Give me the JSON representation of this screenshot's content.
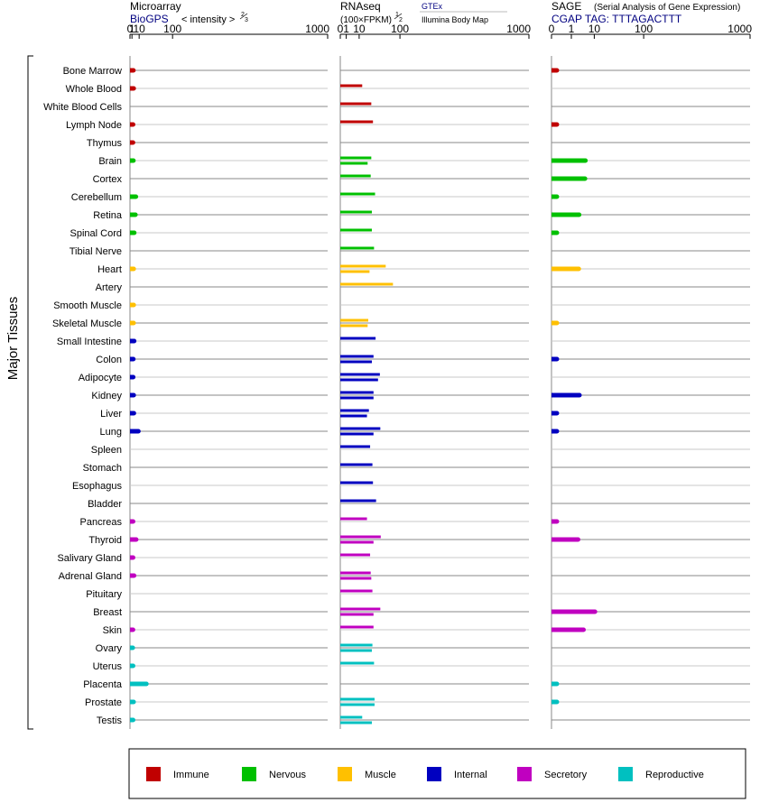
{
  "panels": [
    {
      "key": "microarray",
      "title": "Microarray",
      "subtitle": "BioGPS",
      "subtitle_color": "#000080",
      "scale_label": "< intensity >",
      "scale_exponent": "2/3",
      "exponent_num": "2",
      "exponent_den": "3"
    },
    {
      "key": "rnaseq",
      "title": "RNAseq",
      "scale_label": "(100×FPKM)",
      "scale_exponent": "1/2",
      "exponent_num": "1",
      "exponent_den": "2",
      "source_top": "GTEx",
      "source_bottom": "Illumina Body Map"
    },
    {
      "key": "sage",
      "title": "SAGE",
      "title_note": "(Serial Analysis of Gene Expression)",
      "subtitle": "CGAP TAG: TTTAGACTTT",
      "subtitle_color": "#000080"
    }
  ],
  "axis_ticks": [
    "0",
    "1",
    "10",
    "100",
    "1000"
  ],
  "y_group_label": "Major Tissues",
  "legend": [
    {
      "name": "Immune",
      "color": "#c00000"
    },
    {
      "name": "Nervous",
      "color": "#00c000"
    },
    {
      "name": "Muscle",
      "color": "#ffc000"
    },
    {
      "name": "Internal",
      "color": "#0000c0"
    },
    {
      "name": "Secretory",
      "color": "#c000c0"
    },
    {
      "name": "Reproductive",
      "color": "#00c0c0"
    }
  ],
  "chart_data": {
    "type": "bar",
    "orientation": "horizontal",
    "x_scale": "power",
    "xlim": [
      0,
      1000
    ],
    "categories": [
      "Bone Marrow",
      "Whole Blood",
      "White Blood Cells",
      "Lymph Node",
      "Thymus",
      "Brain",
      "Cortex",
      "Cerebellum",
      "Retina",
      "Spinal Cord",
      "Tibial Nerve",
      "Heart",
      "Artery",
      "Smooth Muscle",
      "Skeletal Muscle",
      "Small Intestine",
      "Colon",
      "Adipocyte",
      "Kidney",
      "Liver",
      "Lung",
      "Spleen",
      "Stomach",
      "Esophagus",
      "Bladder",
      "Pancreas",
      "Thyroid",
      "Salivary Gland",
      "Adrenal Gland",
      "Pituitary",
      "Breast",
      "Skin",
      "Ovary",
      "Uterus",
      "Placenta",
      "Prostate",
      "Testis"
    ],
    "category_groups": [
      "Immune",
      "Immune",
      "Immune",
      "Immune",
      "Immune",
      "Nervous",
      "Nervous",
      "Nervous",
      "Nervous",
      "Nervous",
      "Nervous",
      "Muscle",
      "Muscle",
      "Muscle",
      "Muscle",
      "Internal",
      "Internal",
      "Internal",
      "Internal",
      "Internal",
      "Internal",
      "Internal",
      "Internal",
      "Internal",
      "Internal",
      "Secretory",
      "Secretory",
      "Secretory",
      "Secretory",
      "Secretory",
      "Secretory",
      "Secretory",
      "Reproductive",
      "Reproductive",
      "Reproductive",
      "Reproductive",
      "Reproductive"
    ],
    "series": [
      {
        "name": "BioGPS",
        "panel": "microarray",
        "values": [
          2.3,
          2.6,
          null,
          2.0,
          1.9,
          2.3,
          null,
          5.2,
          4.6,
          3.2,
          null,
          2.6,
          null,
          2.6,
          2.5,
          3.1,
          2.2,
          2.1,
          2.6,
          2.8,
          8.8,
          null,
          null,
          null,
          null,
          2.0,
          5.6,
          2.0,
          3.0,
          null,
          null,
          1.9,
          1.7,
          2.0,
          24,
          2.5,
          2.0
        ]
      },
      {
        "name": "GTEx",
        "panel": "rnaseq",
        "values": [
          null,
          13.5,
          27,
          30,
          null,
          27,
          26,
          34,
          28,
          28,
          32,
          58,
          78,
          null,
          22,
          35,
          31,
          44,
          31,
          23,
          45,
          25,
          29,
          30,
          36,
          20,
          46,
          25,
          26,
          29,
          45,
          31,
          29,
          32,
          null,
          33,
          13.5
        ]
      },
      {
        "name": "Illumina Body Map",
        "panel": "rnaseq",
        "values": [
          null,
          null,
          null,
          null,
          null,
          21,
          null,
          null,
          null,
          null,
          null,
          24,
          null,
          null,
          21,
          null,
          28,
          40,
          31,
          20,
          31,
          null,
          null,
          null,
          null,
          null,
          31,
          null,
          27,
          null,
          31,
          null,
          28,
          null,
          null,
          33,
          28
        ]
      },
      {
        "name": "SAGE",
        "panel": "sage",
        "values": [
          0.02,
          null,
          null,
          0.02,
          null,
          5.0,
          4.8,
          0.02,
          2.7,
          0.02,
          null,
          2.6,
          null,
          null,
          0.02,
          null,
          0.02,
          null,
          2.8,
          0.02,
          0.02,
          null,
          null,
          null,
          null,
          0.02,
          2.4,
          null,
          null,
          null,
          10.5,
          4.2,
          null,
          null,
          0.02,
          0.02,
          null
        ]
      }
    ]
  }
}
